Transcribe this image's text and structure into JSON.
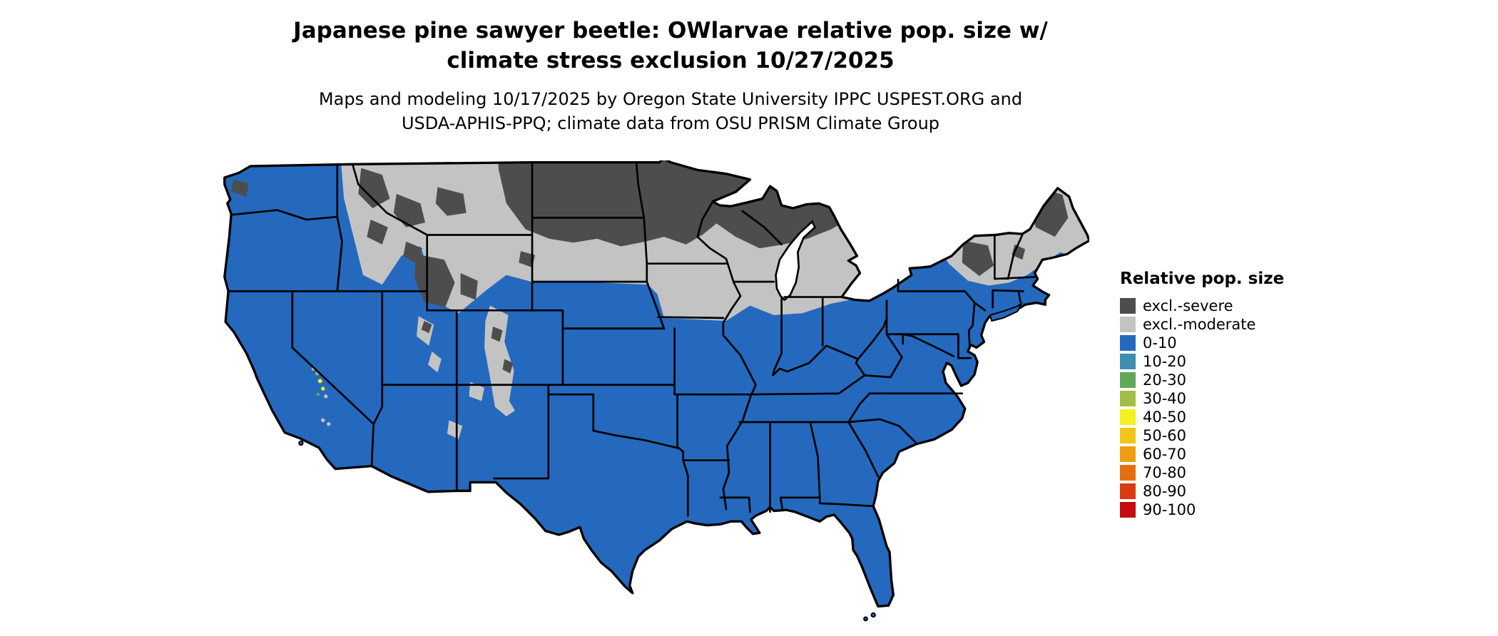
{
  "title_line1": "Japanese pine sawyer beetle: OWlarvae relative pop. size w/",
  "title_line2": "climate stress exclusion 10/27/2025",
  "subtitle_line1": "Maps and modeling 10/17/2025 by Oregon State University IPPC USPEST.ORG and",
  "subtitle_line2": "USDA-APHIS-PPQ; climate data from OSU PRISM Climate Group",
  "legend": {
    "title": "Relative pop. size",
    "items": [
      {
        "label": "excl.-severe",
        "color": "#4d4d4d"
      },
      {
        "label": "excl.-moderate",
        "color": "#c3c3c3"
      },
      {
        "label": "0-10",
        "color": "#2469bd"
      },
      {
        "label": "10-20",
        "color": "#3d8fae"
      },
      {
        "label": "20-30",
        "color": "#62a757"
      },
      {
        "label": "30-40",
        "color": "#a2bf45"
      },
      {
        "label": "40-50",
        "color": "#f4f11c"
      },
      {
        "label": "50-60",
        "color": "#f3c515"
      },
      {
        "label": "60-70",
        "color": "#f09c12"
      },
      {
        "label": "70-80",
        "color": "#e56f10"
      },
      {
        "label": "80-90",
        "color": "#da3b10"
      },
      {
        "label": "90-100",
        "color": "#c50d0d"
      }
    ]
  },
  "map": {
    "colors": {
      "base": "#2469bd",
      "excl_severe": "#4d4d4d",
      "excl_moderate": "#c3c3c3",
      "water": "#ffffff",
      "border": "#000000"
    }
  }
}
